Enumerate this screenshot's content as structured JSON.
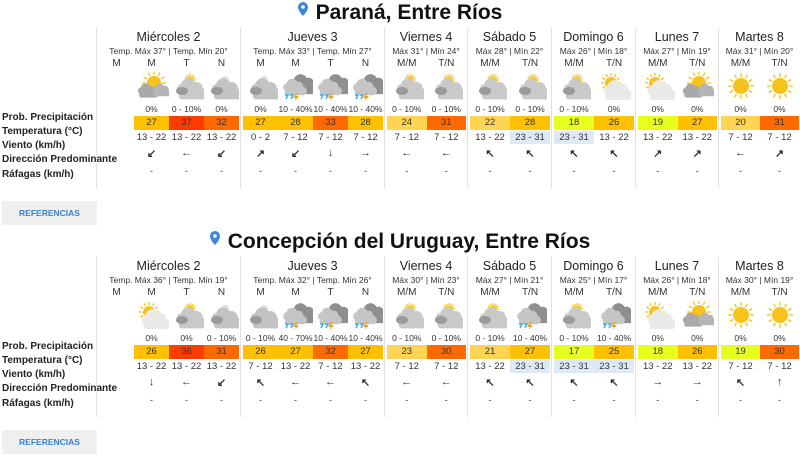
{
  "row_labels": [
    "Prob. Precipitación",
    "Temperatura (°C)",
    "Viento (km/h)",
    "Dirección Predominante",
    "Ráfagas (km/h)"
  ],
  "references_label": "REFERENCIAS",
  "colors": {
    "pin": "#3a88d6",
    "wind_highlight": "#dde9f6"
  },
  "locations": [
    {
      "title": "Paraná, Entre Ríos",
      "days": [
        {
          "name": "Miércoles 2",
          "maxmin": "Temp. Máx 37° | Temp. Mín 20°",
          "periods": [
            {
              "label": "M",
              "empty": true
            },
            {
              "label": "M",
              "icon": "sun-dark-cloud",
              "prob": "0%",
              "temp": "27",
              "color": "#ffc000",
              "wind": "13 - 22",
              "dir": "↙",
              "gust": "-"
            },
            {
              "label": "T",
              "icon": "cloudy-sun",
              "prob": "0 - 10%",
              "temp": "37",
              "color": "#ff3c00",
              "wind": "13 - 22",
              "dir": "←",
              "gust": "-"
            },
            {
              "label": "N",
              "icon": "cloudy-night",
              "prob": "0%",
              "temp": "32",
              "color": "#ff6a00",
              "wind": "13 - 22",
              "dir": "↙",
              "gust": "-"
            }
          ]
        },
        {
          "name": "Jueves 3",
          "maxmin": "Temp. Máx 33° | Temp. Mín 27°",
          "periods": [
            {
              "label": "M",
              "icon": "cloudy-night",
              "prob": "0%",
              "temp": "27",
              "color": "#ffc000",
              "wind": "0 - 2",
              "dir": "↗",
              "gust": "-"
            },
            {
              "label": "M",
              "icon": "storm",
              "prob": "10 - 40%",
              "temp": "28",
              "color": "#ffc000",
              "wind": "7 - 12",
              "dir": "↙",
              "gust": "-"
            },
            {
              "label": "T",
              "icon": "storm",
              "prob": "10 - 40%",
              "temp": "33",
              "color": "#ff6a00",
              "wind": "7 - 12",
              "dir": "↓",
              "gust": "-"
            },
            {
              "label": "N",
              "icon": "storm",
              "prob": "10 - 40%",
              "temp": "28",
              "color": "#ffc000",
              "wind": "7 - 12",
              "dir": "→",
              "gust": "-"
            }
          ]
        },
        {
          "name": "Viernes 4",
          "maxmin": "Máx 31° | Mín 24°",
          "periods": [
            {
              "label": "M/M",
              "icon": "cloudy-sun",
              "prob": "0 - 10%",
              "temp": "24",
              "color": "#ffd452",
              "wind": "7 - 12",
              "dir": "←",
              "gust": "-"
            },
            {
              "label": "T/N",
              "icon": "cloudy-sun",
              "prob": "0 - 10%",
              "temp": "31",
              "color": "#ff6a00",
              "wind": "7 - 12",
              "dir": "←",
              "gust": "-"
            }
          ]
        },
        {
          "name": "Sábado 5",
          "maxmin": "Máx 28° | Mín 22°",
          "periods": [
            {
              "label": "M/M",
              "icon": "cloudy-sun",
              "prob": "0 - 10%",
              "temp": "22",
              "color": "#ffd452",
              "wind": "13 - 22",
              "dir": "↖",
              "gust": "-"
            },
            {
              "label": "T/N",
              "icon": "cloudy-sun",
              "prob": "0 - 10%",
              "temp": "28",
              "color": "#ffc000",
              "wind": "23 - 31",
              "highlight": true,
              "dir": "↖",
              "gust": "-"
            }
          ]
        },
        {
          "name": "Domingo 6",
          "maxmin": "Máx 26° | Mín 18°",
          "periods": [
            {
              "label": "M/M",
              "icon": "cloudy-sun",
              "prob": "0 - 10%",
              "temp": "18",
              "color": "#e6ff1e",
              "wind": "23 - 31",
              "highlight": true,
              "dir": "↖",
              "gust": "-"
            },
            {
              "label": "T/N",
              "icon": "partly-cloudy",
              "prob": "0%",
              "temp": "26",
              "color": "#ffc000",
              "wind": "13 - 22",
              "dir": "↖",
              "gust": "-"
            }
          ]
        },
        {
          "name": "Lunes 7",
          "maxmin": "Máx 27° | Mín 19°",
          "periods": [
            {
              "label": "M/M",
              "icon": "partly-cloudy",
              "prob": "0%",
              "temp": "19",
              "color": "#e6ff1e",
              "wind": "13 - 22",
              "dir": "↗",
              "gust": "-"
            },
            {
              "label": "T/N",
              "icon": "sun-dark-cloud",
              "prob": "0%",
              "temp": "27",
              "color": "#ffc000",
              "wind": "13 - 22",
              "dir": "↗",
              "gust": "-"
            }
          ]
        },
        {
          "name": "Martes 8",
          "maxmin": "Máx 31° | Mín 20°",
          "periods": [
            {
              "label": "M/M",
              "icon": "sunny",
              "prob": "0%",
              "temp": "20",
              "color": "#ffd452",
              "wind": "7 - 12",
              "dir": "←",
              "gust": "-"
            },
            {
              "label": "T/N",
              "icon": "sunny",
              "prob": "0%",
              "temp": "31",
              "color": "#ff6a00",
              "wind": "7 - 12",
              "dir": "↗",
              "gust": "-"
            }
          ]
        }
      ]
    },
    {
      "title": "Concepción del Uruguay, Entre Ríos",
      "days": [
        {
          "name": "Miércoles 2",
          "maxmin": "Temp. Máx 36° | Temp. Mín 19°",
          "periods": [
            {
              "label": "M",
              "empty": true
            },
            {
              "label": "M",
              "icon": "partly-cloudy",
              "prob": "0%",
              "temp": "26",
              "color": "#ffc000",
              "wind": "13 - 22",
              "dir": "↓",
              "gust": "-"
            },
            {
              "label": "T",
              "icon": "cloudy-sun",
              "prob": "0%",
              "temp": "36",
              "color": "#ff3c00",
              "wind": "13 - 22",
              "dir": "←",
              "gust": "-"
            },
            {
              "label": "N",
              "icon": "cloudy-night",
              "prob": "0 - 10%",
              "temp": "31",
              "color": "#ff6a00",
              "wind": "13 - 22",
              "dir": "↙",
              "gust": "-"
            }
          ]
        },
        {
          "name": "Jueves 3",
          "maxmin": "Temp. Máx 32° | Temp. Mín 26°",
          "periods": [
            {
              "label": "M",
              "icon": "cloudy-night",
              "prob": "0 - 10%",
              "temp": "26",
              "color": "#ffc000",
              "wind": "7 - 12",
              "dir": "↖",
              "gust": "-"
            },
            {
              "label": "M",
              "icon": "storm",
              "prob": "40 - 70%",
              "temp": "27",
              "color": "#ffc000",
              "wind": "13 - 22",
              "dir": "←",
              "gust": "-"
            },
            {
              "label": "T",
              "icon": "storm",
              "prob": "10 - 40%",
              "temp": "32",
              "color": "#ff6a00",
              "wind": "7 - 12",
              "dir": "←",
              "gust": "-"
            },
            {
              "label": "N",
              "icon": "storm",
              "prob": "10 - 40%",
              "temp": "27",
              "color": "#ffc000",
              "wind": "13 - 22",
              "dir": "↖",
              "gust": "-"
            }
          ]
        },
        {
          "name": "Viernes 4",
          "maxmin": "Máx 30° | Mín 23°",
          "periods": [
            {
              "label": "M/M",
              "icon": "cloudy-sun",
              "prob": "0 - 10%",
              "temp": "23",
              "color": "#ffd452",
              "wind": "7 - 12",
              "dir": "←",
              "gust": "-"
            },
            {
              "label": "T/N",
              "icon": "cloudy-sun",
              "prob": "0 - 10%",
              "temp": "30",
              "color": "#ff6a00",
              "wind": "7 - 12",
              "dir": "←",
              "gust": "-"
            }
          ]
        },
        {
          "name": "Sábado 5",
          "maxmin": "Máx 27° | Mín 21°",
          "periods": [
            {
              "label": "M/M",
              "icon": "cloudy-sun",
              "prob": "0 - 10%",
              "temp": "21",
              "color": "#ffd452",
              "wind": "13 - 22",
              "dir": "↖",
              "gust": "-"
            },
            {
              "label": "T/N",
              "icon": "storm",
              "prob": "10 - 40%",
              "temp": "27",
              "color": "#ffc000",
              "wind": "23 - 31",
              "highlight": true,
              "dir": "↖",
              "gust": "-"
            }
          ]
        },
        {
          "name": "Domingo 6",
          "maxmin": "Máx 25° | Mín 17°",
          "periods": [
            {
              "label": "M/M",
              "icon": "cloudy-sun",
              "prob": "0 - 10%",
              "temp": "17",
              "color": "#e6ff1e",
              "wind": "23 - 31",
              "highlight": true,
              "dir": "↖",
              "gust": "-"
            },
            {
              "label": "T/N",
              "icon": "storm",
              "prob": "10 - 40%",
              "temp": "25",
              "color": "#ffc000",
              "wind": "23 - 31",
              "highlight": true,
              "dir": "↖",
              "gust": "-"
            }
          ]
        },
        {
          "name": "Lunes 7",
          "maxmin": "Máx 26° | Mín 18°",
          "periods": [
            {
              "label": "M/M",
              "icon": "partly-cloudy",
              "prob": "0%",
              "temp": "18",
              "color": "#e6ff1e",
              "wind": "13 - 22",
              "dir": "→",
              "gust": "-"
            },
            {
              "label": "T/N",
              "icon": "sun-dark-cloud",
              "prob": "0%",
              "temp": "26",
              "color": "#ffc000",
              "wind": "13 - 22",
              "dir": "→",
              "gust": "-"
            }
          ]
        },
        {
          "name": "Martes 8",
          "maxmin": "Máx 30° | Mín 19°",
          "periods": [
            {
              "label": "M/M",
              "icon": "sunny",
              "prob": "0%",
              "temp": "19",
              "color": "#e6ff1e",
              "wind": "7 - 12",
              "dir": "↖",
              "gust": "-"
            },
            {
              "label": "T/N",
              "icon": "sunny",
              "prob": "0%",
              "temp": "30",
              "color": "#ff6a00",
              "wind": "7 - 12",
              "dir": "↑",
              "gust": "-"
            }
          ]
        }
      ]
    }
  ]
}
